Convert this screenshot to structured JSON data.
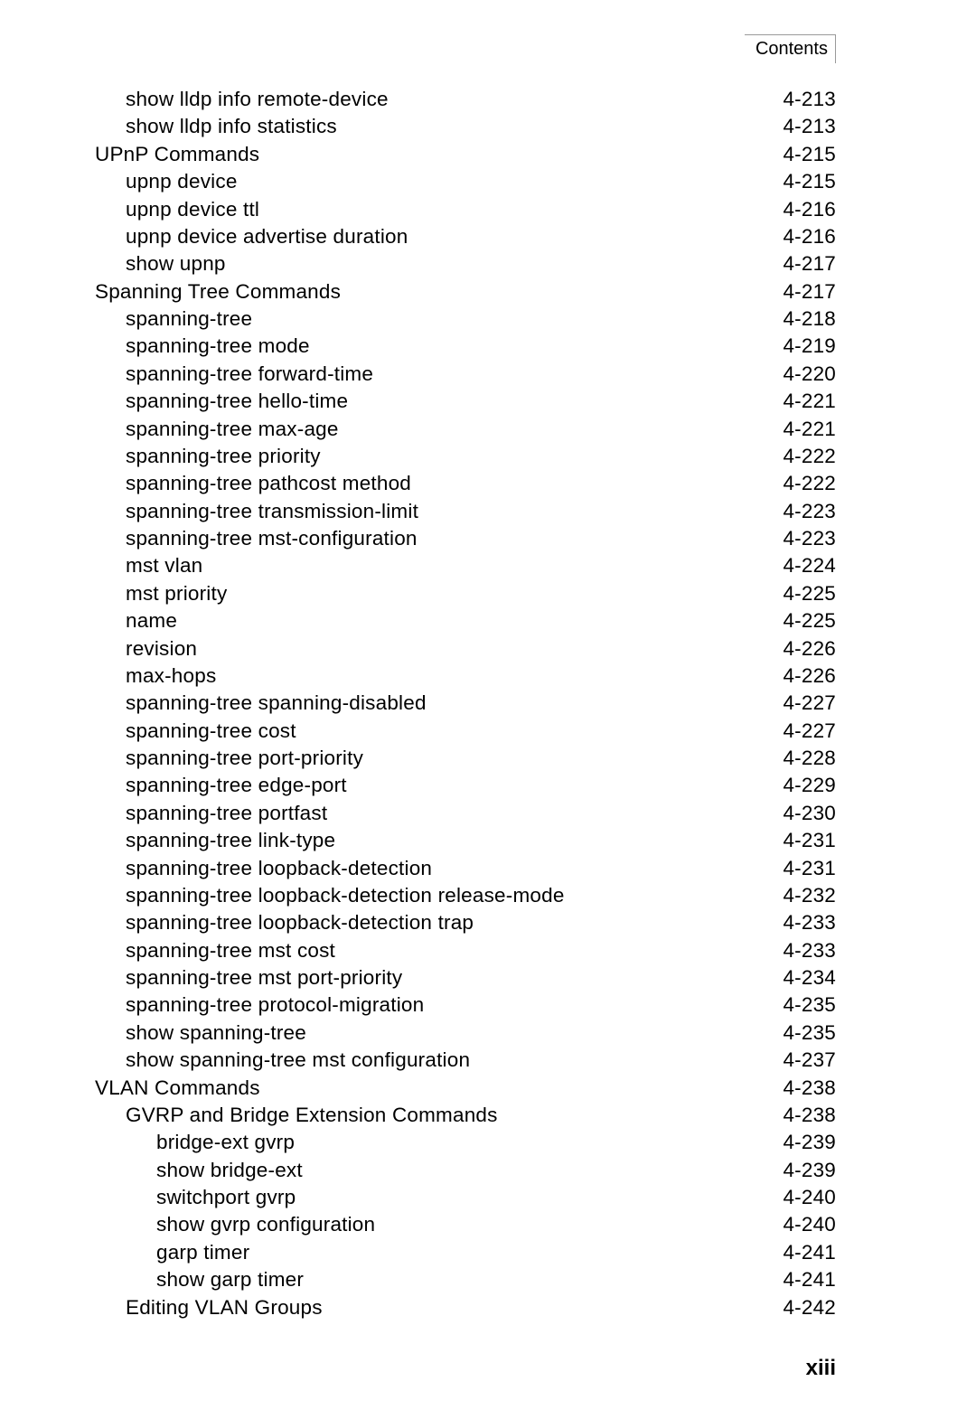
{
  "header": {
    "label": "Contents"
  },
  "toc": [
    {
      "indent": 1,
      "label": "show lldp info remote-device",
      "page": "4-213"
    },
    {
      "indent": 1,
      "label": "show lldp info statistics",
      "page": "4-213"
    },
    {
      "indent": 0,
      "label": "UPnP Commands",
      "page": "4-215"
    },
    {
      "indent": 1,
      "label": "upnp device",
      "page": "4-215"
    },
    {
      "indent": 1,
      "label": "upnp device ttl",
      "page": "4-216"
    },
    {
      "indent": 1,
      "label": "upnp device advertise duration",
      "page": "4-216"
    },
    {
      "indent": 1,
      "label": "show upnp",
      "page": "4-217"
    },
    {
      "indent": 0,
      "label": "Spanning Tree Commands",
      "page": "4-217"
    },
    {
      "indent": 1,
      "label": "spanning-tree",
      "page": "4-218"
    },
    {
      "indent": 1,
      "label": "spanning-tree mode",
      "page": "4-219"
    },
    {
      "indent": 1,
      "label": "spanning-tree forward-time",
      "page": "4-220"
    },
    {
      "indent": 1,
      "label": "spanning-tree hello-time",
      "page": "4-221"
    },
    {
      "indent": 1,
      "label": "spanning-tree max-age",
      "page": "4-221"
    },
    {
      "indent": 1,
      "label": "spanning-tree priority",
      "page": "4-222"
    },
    {
      "indent": 1,
      "label": "spanning-tree pathcost method",
      "page": "4-222"
    },
    {
      "indent": 1,
      "label": "spanning-tree transmission-limit",
      "page": "4-223"
    },
    {
      "indent": 1,
      "label": "spanning-tree mst-configuration",
      "page": "4-223"
    },
    {
      "indent": 1,
      "label": "mst vlan",
      "page": "4-224"
    },
    {
      "indent": 1,
      "label": "mst priority",
      "page": "4-225"
    },
    {
      "indent": 1,
      "label": "name",
      "page": "4-225"
    },
    {
      "indent": 1,
      "label": "revision",
      "page": "4-226"
    },
    {
      "indent": 1,
      "label": "max-hops",
      "page": "4-226"
    },
    {
      "indent": 1,
      "label": "spanning-tree spanning-disabled",
      "page": "4-227"
    },
    {
      "indent": 1,
      "label": "spanning-tree cost",
      "page": "4-227"
    },
    {
      "indent": 1,
      "label": "spanning-tree port-priority",
      "page": "4-228"
    },
    {
      "indent": 1,
      "label": "spanning-tree edge-port",
      "page": "4-229"
    },
    {
      "indent": 1,
      "label": "spanning-tree portfast",
      "page": "4-230"
    },
    {
      "indent": 1,
      "label": "spanning-tree link-type",
      "page": "4-231"
    },
    {
      "indent": 1,
      "label": "spanning-tree loopback-detection",
      "page": "4-231"
    },
    {
      "indent": 1,
      "label": "spanning-tree loopback-detection release-mode",
      "page": "4-232"
    },
    {
      "indent": 1,
      "label": "spanning-tree loopback-detection trap",
      "page": "4-233"
    },
    {
      "indent": 1,
      "label": "spanning-tree mst cost",
      "page": "4-233"
    },
    {
      "indent": 1,
      "label": "spanning-tree mst port-priority",
      "page": "4-234"
    },
    {
      "indent": 1,
      "label": "spanning-tree protocol-migration",
      "page": "4-235"
    },
    {
      "indent": 1,
      "label": "show spanning-tree",
      "page": "4-235"
    },
    {
      "indent": 1,
      "label": "show spanning-tree mst configuration",
      "page": "4-237"
    },
    {
      "indent": 0,
      "label": "VLAN Commands",
      "page": "4-238"
    },
    {
      "indent": 1,
      "label": "GVRP and Bridge Extension Commands",
      "page": "4-238"
    },
    {
      "indent": 2,
      "label": "bridge-ext gvrp",
      "page": "4-239"
    },
    {
      "indent": 2,
      "label": "show bridge-ext",
      "page": "4-239"
    },
    {
      "indent": 2,
      "label": "switchport gvrp",
      "page": "4-240"
    },
    {
      "indent": 2,
      "label": "show gvrp configuration",
      "page": "4-240"
    },
    {
      "indent": 2,
      "label": "garp timer",
      "page": "4-241"
    },
    {
      "indent": 2,
      "label": "show garp timer",
      "page": "4-241"
    },
    {
      "indent": 1,
      "label": "Editing VLAN Groups",
      "page": "4-242"
    }
  ],
  "footer": {
    "page_number": "xiii"
  }
}
